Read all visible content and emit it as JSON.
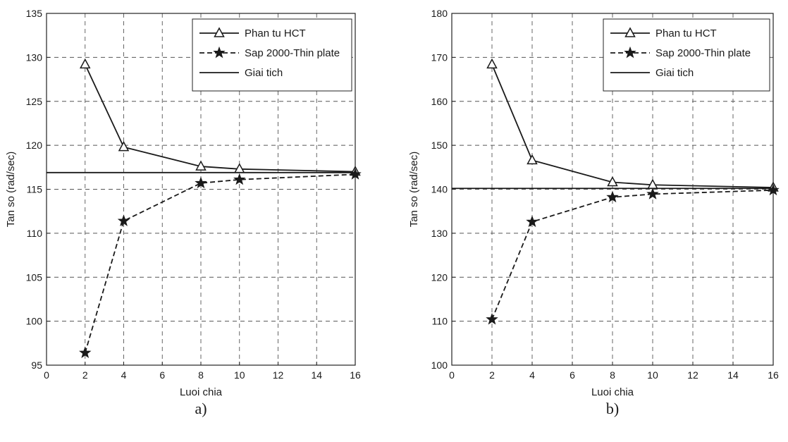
{
  "chart_data": [
    {
      "type": "line",
      "caption": "a)",
      "xlabel": "Luoi chia",
      "ylabel": "Tan so (rad/sec)",
      "xlim": [
        0,
        16
      ],
      "ylim": [
        95,
        135
      ],
      "xticks": [
        0,
        2,
        4,
        6,
        8,
        10,
        12,
        14,
        16
      ],
      "yticks": [
        95,
        100,
        105,
        110,
        115,
        120,
        125,
        130,
        135
      ],
      "grid": true,
      "legend_position": "top-right",
      "series": [
        {
          "name": "Phan tu HCT",
          "style": "solid",
          "marker": "triangle",
          "x": [
            2,
            4,
            8,
            10,
            16
          ],
          "y": [
            129.2,
            119.8,
            117.6,
            117.3,
            117.0
          ]
        },
        {
          "name": "Sap 2000-Thin plate",
          "style": "dashed",
          "marker": "star",
          "x": [
            2,
            4,
            8,
            10,
            16
          ],
          "y": [
            96.4,
            111.4,
            115.7,
            116.1,
            116.7
          ]
        },
        {
          "name": "Giai tich",
          "style": "solid",
          "marker": "none",
          "x": [
            0,
            16
          ],
          "y": [
            116.9,
            116.9
          ]
        }
      ]
    },
    {
      "type": "line",
      "caption": "b)",
      "xlabel": "Luoi chia",
      "ylabel": "Tan so (rad/sec)",
      "xlim": [
        0,
        16
      ],
      "ylim": [
        100,
        180
      ],
      "xticks": [
        0,
        2,
        4,
        6,
        8,
        10,
        12,
        14,
        16
      ],
      "yticks": [
        100,
        110,
        120,
        130,
        140,
        150,
        160,
        170,
        180
      ],
      "grid": true,
      "legend_position": "top-right",
      "series": [
        {
          "name": "Phan tu HCT",
          "style": "solid",
          "marker": "triangle",
          "x": [
            2,
            4,
            8,
            10,
            16
          ],
          "y": [
            168.4,
            146.6,
            141.6,
            141.0,
            140.4
          ]
        },
        {
          "name": "Sap 2000-Thin plate",
          "style": "dashed",
          "marker": "star",
          "x": [
            2,
            4,
            8,
            10,
            16
          ],
          "y": [
            110.4,
            132.6,
            138.2,
            138.9,
            139.8
          ]
        },
        {
          "name": "Giai tich",
          "style": "solid",
          "marker": "none",
          "x": [
            0,
            16
          ],
          "y": [
            140.2,
            140.2
          ]
        }
      ]
    }
  ]
}
